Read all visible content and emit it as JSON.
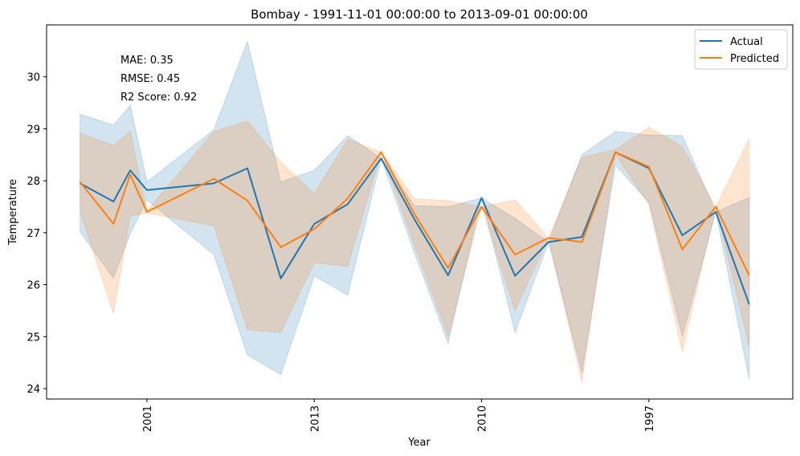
{
  "chart_data": {
    "type": "line",
    "title": "Bombay - 1991-11-01 00:00:00 to 2013-09-01 00:00:00",
    "xlabel": "Year",
    "ylabel": "Temperature",
    "ylim": [
      23.8,
      31.0
    ],
    "yticks": [
      24,
      25,
      26,
      27,
      28,
      29,
      30
    ],
    "xticks": [
      {
        "pos": 6,
        "label": "2001"
      },
      {
        "pos": 11,
        "label": "2013"
      },
      {
        "pos": 16,
        "label": "2010"
      },
      {
        "pos": 21,
        "label": "1997"
      }
    ],
    "metrics": [
      "MAE: 0.35",
      "RMSE: 0.45",
      "R2 Score: 0.92"
    ],
    "legend": {
      "location": "top-right",
      "entries": [
        "Actual",
        "Predicted"
      ]
    },
    "grid": false,
    "series": [
      {
        "name": "Actual",
        "color": "#1f77b4",
        "values": [
          {
            "x": 4,
            "y": 27.95,
            "lo": 27.02,
            "hi": 29.28
          },
          {
            "x": 5,
            "y": 27.6,
            "lo": 26.12,
            "hi": 29.07
          },
          {
            "x": 5.5,
            "y": 28.2,
            "lo": 26.98,
            "hi": 29.45
          },
          {
            "x": 6,
            "y": 27.82,
            "lo": 27.63,
            "hi": 27.98
          },
          {
            "x": 8,
            "y": 27.95,
            "lo": 26.58,
            "hi": 28.98
          },
          {
            "x": 9,
            "y": 28.24,
            "lo": 24.65,
            "hi": 30.68
          },
          {
            "x": 10,
            "y": 26.12,
            "lo": 24.27,
            "hi": 27.98
          },
          {
            "x": 11,
            "y": 27.17,
            "lo": 26.17,
            "hi": 28.2
          },
          {
            "x": 12,
            "y": 27.55,
            "lo": 25.8,
            "hi": 28.87
          },
          {
            "x": 13,
            "y": 28.43,
            "lo": 28.43,
            "hi": 28.43
          },
          {
            "x": 14,
            "y": 27.25,
            "lo": 26.6,
            "hi": 27.52
          },
          {
            "x": 15,
            "y": 26.18,
            "lo": 24.87,
            "hi": 27.5
          },
          {
            "x": 16,
            "y": 27.67,
            "lo": 27.67,
            "hi": 27.67
          },
          {
            "x": 17,
            "y": 26.17,
            "lo": 25.08,
            "hi": 27.28
          },
          {
            "x": 18,
            "y": 26.82,
            "lo": 26.82,
            "hi": 26.82
          },
          {
            "x": 19,
            "y": 26.92,
            "lo": 24.3,
            "hi": 28.5
          },
          {
            "x": 20,
            "y": 28.55,
            "lo": 28.3,
            "hi": 28.95
          },
          {
            "x": 21,
            "y": 28.24,
            "lo": 27.58,
            "hi": 28.88
          },
          {
            "x": 22,
            "y": 26.95,
            "lo": 25.0,
            "hi": 28.87
          },
          {
            "x": 23,
            "y": 27.4,
            "lo": 27.4,
            "hi": 27.4
          },
          {
            "x": 24,
            "y": 25.62,
            "lo": 24.18,
            "hi": 27.68
          }
        ]
      },
      {
        "name": "Predicted",
        "color": "#ff7f0e",
        "values": [
          {
            "x": 4,
            "y": 27.98,
            "lo": 27.4,
            "hi": 28.92
          },
          {
            "x": 5,
            "y": 27.17,
            "lo": 25.45,
            "hi": 28.68
          },
          {
            "x": 5.5,
            "y": 28.12,
            "lo": 27.32,
            "hi": 28.95
          },
          {
            "x": 6,
            "y": 27.4,
            "lo": 27.38,
            "hi": 27.42
          },
          {
            "x": 8,
            "y": 28.04,
            "lo": 27.13,
            "hi": 28.95
          },
          {
            "x": 9,
            "y": 27.62,
            "lo": 25.13,
            "hi": 29.15
          },
          {
            "x": 10,
            "y": 26.72,
            "lo": 25.08,
            "hi": 28.36
          },
          {
            "x": 11,
            "y": 27.07,
            "lo": 26.42,
            "hi": 27.75
          },
          {
            "x": 12,
            "y": 27.66,
            "lo": 26.35,
            "hi": 28.8
          },
          {
            "x": 13,
            "y": 28.55,
            "lo": 28.55,
            "hi": 28.55
          },
          {
            "x": 14,
            "y": 27.35,
            "lo": 26.75,
            "hi": 27.65
          },
          {
            "x": 15,
            "y": 26.32,
            "lo": 25.0,
            "hi": 27.62
          },
          {
            "x": 16,
            "y": 27.5,
            "lo": 27.5,
            "hi": 27.5
          },
          {
            "x": 17,
            "y": 26.58,
            "lo": 25.5,
            "hi": 27.63
          },
          {
            "x": 18,
            "y": 26.9,
            "lo": 26.9,
            "hi": 26.9
          },
          {
            "x": 19,
            "y": 26.82,
            "lo": 24.13,
            "hi": 28.45
          },
          {
            "x": 20,
            "y": 28.55,
            "lo": 28.5,
            "hi": 28.6
          },
          {
            "x": 21,
            "y": 28.27,
            "lo": 27.55,
            "hi": 29.03
          },
          {
            "x": 22,
            "y": 26.68,
            "lo": 24.72,
            "hi": 28.66
          },
          {
            "x": 23,
            "y": 27.5,
            "lo": 27.5,
            "hi": 27.5
          },
          {
            "x": 24,
            "y": 26.18,
            "lo": 24.8,
            "hi": 28.8
          }
        ]
      }
    ]
  }
}
